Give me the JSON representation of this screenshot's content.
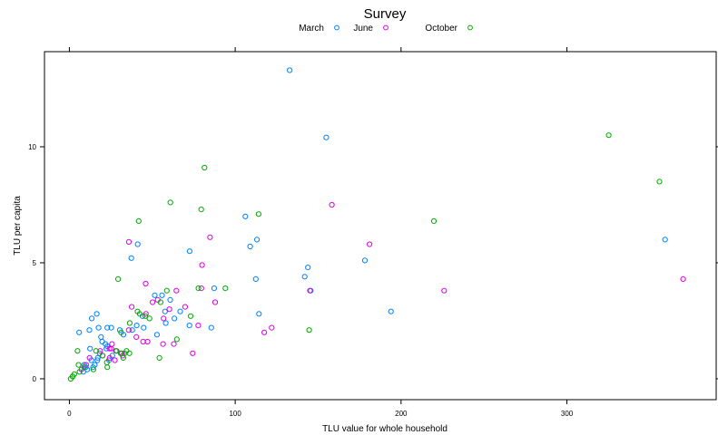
{
  "chart_data": {
    "type": "scatter",
    "title": "",
    "legend_title": "Survey",
    "legend_position": "top",
    "xlabel": "TLU value for whole household",
    "ylabel": "TLU per capita",
    "xlim": [
      -15,
      390
    ],
    "ylim": [
      -0.9,
      14.1
    ],
    "x_ticks": [
      0,
      100,
      200,
      300
    ],
    "y_ticks": [
      0,
      5,
      10
    ],
    "grid": false,
    "series": [
      {
        "name": "March",
        "color": "#0080ff",
        "points": [
          [
            132.8,
            13.3
          ],
          [
            154.9,
            10.4
          ],
          [
            359.2,
            6.0
          ],
          [
            106.1,
            7.0
          ],
          [
            113.1,
            6.0
          ],
          [
            109.0,
            5.7
          ],
          [
            41.2,
            5.8
          ],
          [
            72.5,
            5.5
          ],
          [
            37.4,
            5.2
          ],
          [
            178.2,
            5.1
          ],
          [
            143.8,
            4.8
          ],
          [
            141.9,
            4.4
          ],
          [
            112.4,
            4.3
          ],
          [
            145.5,
            3.8
          ],
          [
            87.3,
            3.9
          ],
          [
            55.9,
            3.6
          ],
          [
            51.5,
            3.6
          ],
          [
            60.8,
            3.4
          ],
          [
            85.6,
            2.2
          ],
          [
            114.3,
            2.8
          ],
          [
            193.9,
            2.9
          ],
          [
            66.8,
            2.9
          ],
          [
            57.7,
            2.9
          ],
          [
            63.3,
            2.6
          ],
          [
            58.1,
            2.4
          ],
          [
            16.5,
            2.8
          ],
          [
            13.5,
            2.6
          ],
          [
            17.6,
            2.2
          ],
          [
            12.1,
            2.1
          ],
          [
            5.9,
            2.0
          ],
          [
            22.9,
            2.2
          ],
          [
            25.3,
            2.2
          ],
          [
            30.4,
            2.1
          ],
          [
            32.6,
            1.9
          ],
          [
            37.9,
            2.1
          ],
          [
            44.1,
            2.7
          ],
          [
            40.6,
            2.3
          ],
          [
            44.8,
            2.2
          ],
          [
            52.8,
            1.9
          ],
          [
            72.4,
            2.3
          ],
          [
            19.1,
            1.8
          ],
          [
            19.8,
            1.6
          ],
          [
            21.8,
            1.5
          ],
          [
            22.3,
            1.3
          ],
          [
            22.9,
            1.4
          ],
          [
            12.5,
            1.3
          ],
          [
            18.3,
            1.1
          ],
          [
            17.1,
            0.9
          ],
          [
            13.3,
            0.8
          ],
          [
            8.9,
            0.6
          ],
          [
            10.8,
            0.4
          ],
          [
            8.4,
            0.3
          ],
          [
            14.3,
            0.5
          ],
          [
            15.3,
            0.6
          ],
          [
            16.9,
            0.8
          ],
          [
            23.9,
            0.8
          ],
          [
            25.9,
            1.0
          ],
          [
            9.9,
            0.5
          ]
        ]
      },
      {
        "name": "June",
        "color": "#e000e0",
        "points": [
          [
            158.3,
            7.5
          ],
          [
            84.8,
            6.1
          ],
          [
            35.9,
            5.9
          ],
          [
            181.0,
            5.8
          ],
          [
            80.0,
            4.9
          ],
          [
            370.1,
            4.3
          ],
          [
            46.0,
            4.1
          ],
          [
            79.6,
            3.9
          ],
          [
            64.5,
            3.8
          ],
          [
            226.0,
            3.8
          ],
          [
            145.1,
            3.8
          ],
          [
            50.2,
            3.3
          ],
          [
            53.3,
            3.4
          ],
          [
            60.3,
            3.0
          ],
          [
            69.8,
            3.1
          ],
          [
            87.9,
            3.3
          ],
          [
            37.6,
            3.1
          ],
          [
            77.7,
            2.3
          ],
          [
            46.2,
            2.8
          ],
          [
            56.8,
            2.6
          ],
          [
            44.5,
            1.6
          ],
          [
            47.1,
            1.6
          ],
          [
            56.5,
            1.5
          ],
          [
            35.8,
            2.1
          ],
          [
            40.4,
            1.8
          ],
          [
            25.7,
            1.5
          ],
          [
            28.0,
            1.2
          ],
          [
            24.2,
            1.3
          ],
          [
            31.6,
            1.1
          ],
          [
            20.0,
            1.0
          ],
          [
            18.6,
            1.2
          ],
          [
            25.3,
            1.3
          ],
          [
            12.2,
            0.9
          ],
          [
            24.3,
            0.9
          ],
          [
            27.4,
            0.8
          ],
          [
            32.2,
            1.0
          ],
          [
            122.0,
            2.2
          ],
          [
            117.5,
            2.0
          ],
          [
            63.0,
            1.5
          ],
          [
            74.4,
            1.1
          ],
          [
            10.1,
            0.6
          ],
          [
            7.3,
            0.4
          ]
        ]
      },
      {
        "name": "October",
        "color": "#00aa00",
        "points": [
          [
            325.2,
            10.5
          ],
          [
            81.5,
            9.1
          ],
          [
            355.8,
            8.5
          ],
          [
            60.9,
            7.6
          ],
          [
            79.5,
            7.3
          ],
          [
            114.1,
            7.1
          ],
          [
            41.8,
            6.8
          ],
          [
            219.8,
            6.8
          ],
          [
            29.4,
            4.3
          ],
          [
            94.1,
            3.9
          ],
          [
            77.8,
            3.9
          ],
          [
            58.8,
            3.8
          ],
          [
            55.0,
            3.3
          ],
          [
            41.1,
            2.9
          ],
          [
            42.4,
            2.8
          ],
          [
            45.8,
            2.7
          ],
          [
            36.4,
            2.4
          ],
          [
            73.1,
            2.7
          ],
          [
            34.5,
            1.2
          ],
          [
            33.3,
            1.1
          ],
          [
            28.5,
            1.2
          ],
          [
            30.9,
            1.1
          ],
          [
            4.9,
            1.2
          ],
          [
            16.1,
            1.2
          ],
          [
            20.1,
            1.0
          ],
          [
            32.5,
            0.9
          ],
          [
            36.2,
            1.1
          ],
          [
            22.6,
            0.7
          ],
          [
            22.9,
            0.5
          ],
          [
            8.9,
            0.5
          ],
          [
            6.1,
            0.3
          ],
          [
            3.0,
            0.2
          ],
          [
            1.9,
            0.1
          ],
          [
            0.8,
            0.0
          ],
          [
            2.1,
            0.1
          ],
          [
            144.6,
            2.1
          ],
          [
            54.3,
            0.9
          ],
          [
            64.8,
            1.7
          ],
          [
            31.2,
            2.0
          ],
          [
            48.3,
            2.6
          ],
          [
            14.5,
            0.4
          ],
          [
            5.5,
            0.6
          ]
        ]
      }
    ]
  }
}
